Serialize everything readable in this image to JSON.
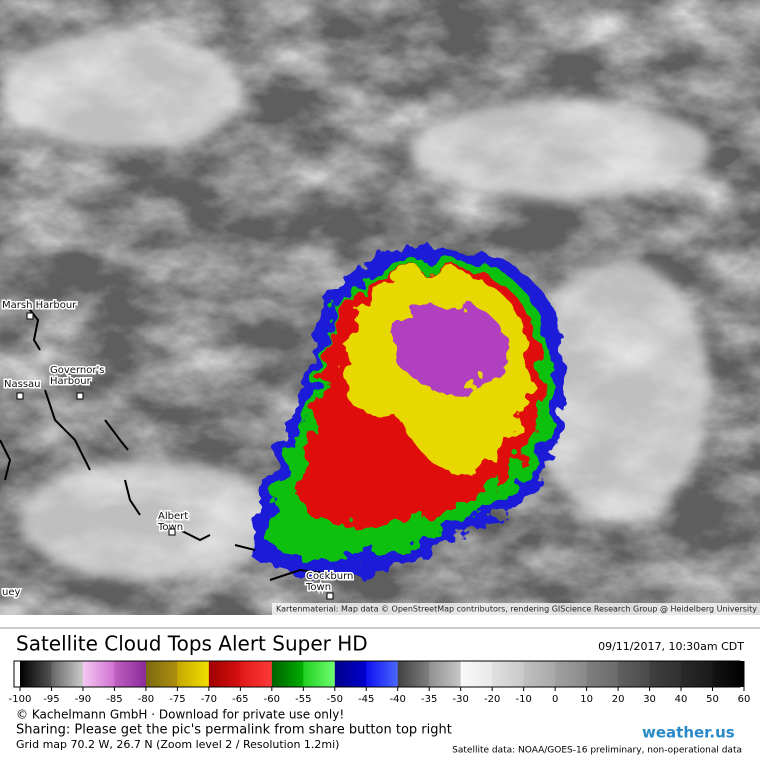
{
  "map": {
    "attribution": "Kartenmaterial: Map data © OpenStreetMap contributors, rendering GIScience Research Group @ Heidelberg University",
    "places": [
      {
        "lines": [
          "Marsh Harbour"
        ]
      },
      {
        "lines": [
          "Governor's",
          "Harbour"
        ]
      },
      {
        "lines": [
          "Nassau"
        ]
      },
      {
        "lines": [
          "Albert",
          "Town"
        ]
      },
      {
        "lines": [
          "Cockburn",
          "Town"
        ]
      },
      {
        "lines": [
          "uey"
        ]
      }
    ]
  },
  "footer": {
    "title": "Satellite Cloud Tops Alert Super HD",
    "datetime": "09/11/2017, 10:30am CDT",
    "scale": {
      "ticks": [
        -100,
        -95,
        -90,
        -85,
        -80,
        -75,
        -70,
        -65,
        -60,
        -55,
        -50,
        -45,
        -40,
        -35,
        -30,
        -20,
        -10,
        0,
        10,
        20,
        30,
        40,
        50,
        60
      ],
      "colors": [
        [
          "#000000",
          "#555555"
        ],
        [
          "#666666",
          "#cccccc"
        ],
        [
          "#f4c8f4",
          "#d070d0"
        ],
        [
          "#c060c0",
          "#8a2a9a"
        ],
        [
          "#7a6a10",
          "#b09010"
        ],
        [
          "#c8a800",
          "#f0e000"
        ],
        [
          "#a00000",
          "#d81010"
        ],
        [
          "#e01818",
          "#ff3a3a"
        ],
        [
          "#006000",
          "#00b000"
        ],
        [
          "#20d020",
          "#70ff70"
        ],
        [
          "#00008a",
          "#0000d0"
        ],
        [
          "#1010f0",
          "#4a6aff"
        ],
        [
          "#404040",
          "#808080"
        ],
        [
          "#909090",
          "#c8c8c8"
        ],
        [
          "#fafafa",
          "#e8e8e8"
        ],
        [
          "#e0e0e0",
          "#c8c8c8"
        ],
        [
          "#c0c0c0",
          "#a8a8a8"
        ],
        [
          "#a0a0a0",
          "#8a8a8a"
        ],
        [
          "#808080",
          "#6a6a6a"
        ],
        [
          "#606060",
          "#4a4a4a"
        ],
        [
          "#404040",
          "#303030"
        ],
        [
          "#2a2a2a",
          "#1a1a1a"
        ],
        [
          "#141414",
          "#000000"
        ]
      ]
    },
    "copyright": "© Kachelmann GmbH · Download for private use only!",
    "sharing": "Sharing: Please get the pic's permalink from share button top right",
    "grid": "Grid map 70.2 W, 26.7 N (Zoom level 2 / Resolution 1.2mi)",
    "brand": "weather.us",
    "source": "Satellite data: NOAA/GOES-16 preliminary, non-operational data"
  }
}
